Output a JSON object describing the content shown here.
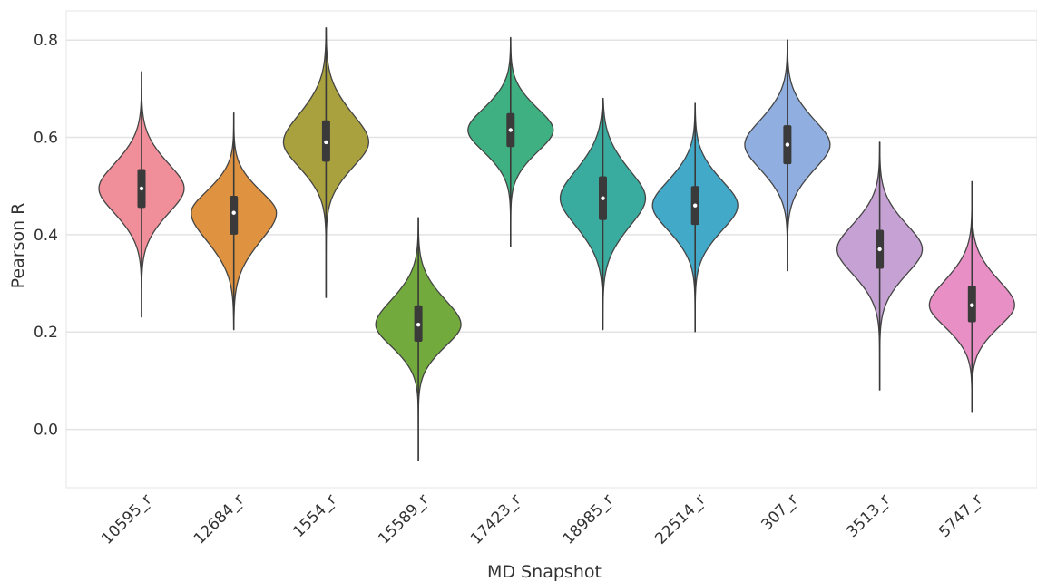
{
  "chart_data": {
    "type": "violin",
    "title": "",
    "xlabel": "MD Snapshot",
    "ylabel": "Pearson R",
    "ylim": [
      -0.12,
      0.86
    ],
    "yticks": [
      "0.0",
      "0.2",
      "0.4",
      "0.6",
      "0.8"
    ],
    "ytick_values": [
      0.0,
      0.2,
      0.4,
      0.6,
      0.8
    ],
    "grid": true,
    "categories": [
      "10595_r",
      "12684_r",
      "1554_r",
      "15589_r",
      "17423_r",
      "18985_r",
      "22514_r",
      "307_r",
      "3513_r",
      "5747_r"
    ],
    "series": [
      {
        "category": "10595_r",
        "color": "#f08f99",
        "min": 0.23,
        "q1": 0.455,
        "median": 0.495,
        "q3": 0.535,
        "max": 0.735
      },
      {
        "category": "12684_r",
        "color": "#df9240",
        "min": 0.205,
        "q1": 0.4,
        "median": 0.445,
        "q3": 0.48,
        "max": 0.65
      },
      {
        "category": "1554_r",
        "color": "#a9a03e",
        "min": 0.27,
        "q1": 0.55,
        "median": 0.59,
        "q3": 0.635,
        "max": 0.825
      },
      {
        "category": "15589_r",
        "color": "#73aa3d",
        "min": -0.065,
        "q1": 0.18,
        "median": 0.215,
        "q3": 0.255,
        "max": 0.435
      },
      {
        "category": "17423_r",
        "color": "#3fb082",
        "min": 0.375,
        "q1": 0.58,
        "median": 0.615,
        "q3": 0.65,
        "max": 0.805
      },
      {
        "category": "18985_r",
        "color": "#3aac9f",
        "min": 0.205,
        "q1": 0.43,
        "median": 0.475,
        "q3": 0.52,
        "max": 0.68
      },
      {
        "category": "22514_r",
        "color": "#43a9c8",
        "min": 0.2,
        "q1": 0.42,
        "median": 0.46,
        "q3": 0.5,
        "max": 0.67
      },
      {
        "category": "307_r",
        "color": "#91aee0",
        "min": 0.325,
        "q1": 0.545,
        "median": 0.585,
        "q3": 0.625,
        "max": 0.8
      },
      {
        "category": "3513_r",
        "color": "#c6a1d3",
        "min": 0.08,
        "q1": 0.33,
        "median": 0.37,
        "q3": 0.41,
        "max": 0.59
      },
      {
        "category": "5747_r",
        "color": "#e88fc5",
        "min": 0.035,
        "q1": 0.22,
        "median": 0.255,
        "q3": 0.295,
        "max": 0.51
      }
    ]
  }
}
